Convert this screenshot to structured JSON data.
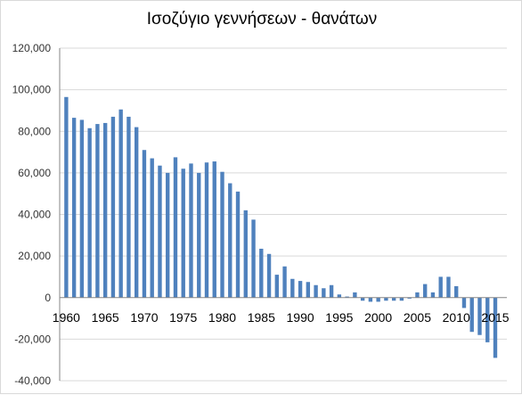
{
  "chart_data": {
    "type": "bar",
    "title": "Ισοζύγιο γεννήσεων - θανάτων",
    "xlabel": "",
    "ylabel": "",
    "ylim": [
      -40000,
      120000
    ],
    "yticks": [
      -40000,
      -20000,
      0,
      20000,
      40000,
      60000,
      80000,
      100000,
      120000
    ],
    "ytick_labels": [
      "-40,000",
      "-20,000",
      "0",
      "20,000",
      "40,000",
      "60,000",
      "80,000",
      "100,000",
      "120,000"
    ],
    "xticks": [
      1960,
      1965,
      1970,
      1975,
      1980,
      1985,
      1990,
      1995,
      2000,
      2005,
      2010,
      2015
    ],
    "grid": true,
    "legend": false,
    "bar_color": "#4f81bd",
    "x": [
      1960,
      1961,
      1962,
      1963,
      1964,
      1965,
      1966,
      1967,
      1968,
      1969,
      1970,
      1971,
      1972,
      1973,
      1974,
      1975,
      1976,
      1977,
      1978,
      1979,
      1980,
      1981,
      1982,
      1983,
      1984,
      1985,
      1986,
      1987,
      1988,
      1989,
      1990,
      1991,
      1992,
      1993,
      1994,
      1995,
      1996,
      1997,
      1998,
      1999,
      2000,
      2001,
      2002,
      2003,
      2004,
      2005,
      2006,
      2007,
      2008,
      2009,
      2010,
      2011,
      2012,
      2013,
      2014,
      2015
    ],
    "values": [
      96500,
      86500,
      85500,
      81500,
      83500,
      84000,
      87000,
      90500,
      87000,
      82000,
      71000,
      67000,
      63500,
      60000,
      67500,
      62000,
      64500,
      60000,
      65000,
      65500,
      60500,
      55000,
      51000,
      42000,
      37500,
      23500,
      21000,
      11000,
      15000,
      9000,
      8000,
      7500,
      6000,
      4500,
      6000,
      1500,
      500,
      2500,
      -1500,
      -2000,
      -2000,
      -1500,
      -1500,
      -1500,
      -500,
      2500,
      6500,
      2500,
      10000,
      10000,
      5500,
      -5000,
      -16500,
      -18000,
      -21500,
      -29000
    ]
  }
}
